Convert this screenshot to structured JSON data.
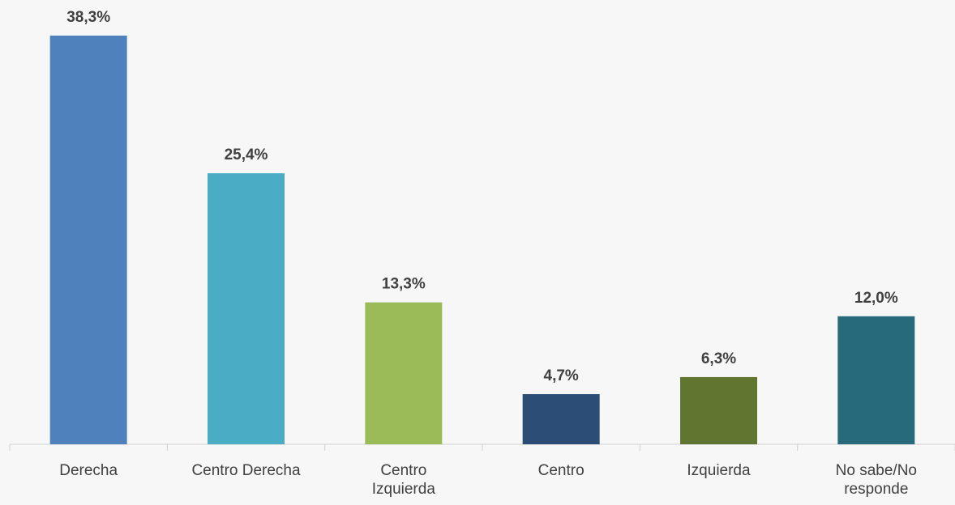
{
  "chart_data": {
    "type": "bar",
    "categories": [
      "Derecha",
      "Centro Derecha",
      "Centro Izquierda",
      "Centro",
      "Izquierda",
      "No sabe/No responde"
    ],
    "values": [
      38.3,
      25.4,
      13.3,
      4.7,
      6.3,
      12.0
    ],
    "value_labels": [
      "38,3%",
      "25,4%",
      "13,3%",
      "4,7%",
      "6,3%",
      "12,0%"
    ],
    "colors": [
      "#4f81bd",
      "#4bacc6",
      "#9bbb59",
      "#2c4d75",
      "#5f7530",
      "#276a7c"
    ]
  }
}
